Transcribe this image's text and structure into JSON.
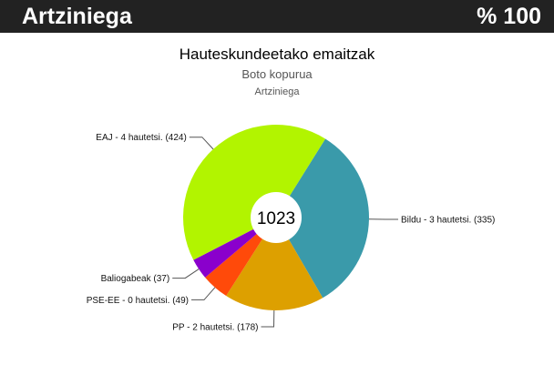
{
  "header": {
    "place": "Artziniega",
    "percent": "% 100"
  },
  "chart_data": {
    "type": "pie",
    "title": "Hauteskundeetako emaitzak",
    "subtitle": "Boto kopurua",
    "caption": "Artziniega",
    "total": "1023",
    "slices": [
      {
        "label": "Bildu - 3 hautetsi. (335)",
        "value": 335,
        "color": "#3a9aaa"
      },
      {
        "label": "PP - 2 hautetsi. (178)",
        "value": 178,
        "color": "#dda000"
      },
      {
        "label": "PSE-EE - 0 hautetsi. (49)",
        "value": 49,
        "color": "#ff4a0a"
      },
      {
        "label": "Baliogabeak (37)",
        "value": 37,
        "color": "#8a00cc"
      },
      {
        "label": "EAJ - 4 hautetsi. (424)",
        "value": 424,
        "color": "#b2f400"
      }
    ]
  }
}
